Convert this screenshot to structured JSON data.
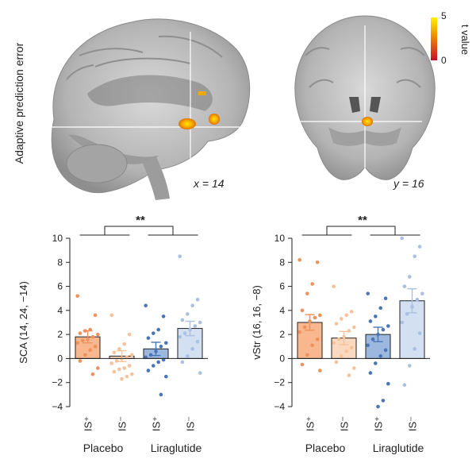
{
  "colors": {
    "placebo_isplus": "#f0905a",
    "placebo_isminus": "#f7c29a",
    "lira_isplus": "#4a76b8",
    "lira_isminus": "#a9c0e2",
    "bar_fill_isplus_placebo": "#f8b78e",
    "bar_fill_isminus_placebo": "#fbd9c0",
    "bar_fill_isplus_lira": "#9db8de",
    "bar_fill_isminus_lira": "#d3e0f1",
    "activation_low": "#c8102e",
    "activation_high": "#fff200"
  },
  "brain_panel": {
    "ylabel": "Adaptive prediction error",
    "sagittal_label": "x = 14",
    "coronal_label": "y = 16",
    "colorbar": {
      "label": "t value",
      "max": "5",
      "min": "0"
    }
  },
  "chart_data": [
    {
      "type": "bar",
      "ylabel": "SCA (14, 24, −14)",
      "ylim": [
        -4,
        10
      ],
      "yticks": [
        "−4",
        "−2",
        "0",
        "2",
        "4",
        "6",
        "8",
        "10"
      ],
      "categories": [
        "IS⁺",
        "IS⁻",
        "IS⁺",
        "IS⁻"
      ],
      "groups": [
        "Placebo",
        "Liraglutide"
      ],
      "significance": "**",
      "values": [
        1.8,
        0.2,
        0.8,
        2.5
      ],
      "sem": [
        0.5,
        0.45,
        0.55,
        0.6
      ],
      "points": [
        [
          5.2,
          3.6,
          2.4,
          2.3,
          2.1,
          2.0,
          1.8,
          1.6,
          1.5,
          1.3,
          1.0,
          0.7,
          0.3,
          -0.2,
          -0.8,
          -1.3
        ],
        [
          3.6,
          2.0,
          1.2,
          0.8,
          0.5,
          0.3,
          0.1,
          0.0,
          -0.2,
          -0.4,
          -0.6,
          -0.8,
          -0.9,
          -1.1,
          -1.3,
          -1.5,
          -1.7
        ],
        [
          4.4,
          3.5,
          2.4,
          2.1,
          1.7,
          1.3,
          1.0,
          0.6,
          0.3,
          0.1,
          -0.1,
          -0.3,
          -0.6,
          -1.0,
          -1.5,
          -3.0
        ],
        [
          8.5,
          4.9,
          4.4,
          3.7,
          3.2,
          3.0,
          2.7,
          2.4,
          2.1,
          1.8,
          1.4,
          0.8,
          0.2,
          -0.3,
          -1.2
        ]
      ]
    },
    {
      "type": "bar",
      "ylabel": "vStr (16, 16, −8)",
      "ylim": [
        -4,
        10
      ],
      "yticks": [
        "−4",
        "−2",
        "0",
        "2",
        "4",
        "6",
        "8",
        "10"
      ],
      "categories": [
        "IS⁺",
        "IS⁻",
        "IS⁺",
        "IS⁻"
      ],
      "groups": [
        "Placebo",
        "Liraglutide"
      ],
      "significance": "**",
      "values": [
        3.0,
        1.7,
        2.0,
        4.8
      ],
      "sem": [
        0.65,
        0.55,
        0.6,
        1.0
      ],
      "points": [
        [
          8.2,
          8.0,
          6.2,
          5.4,
          4.0,
          3.6,
          3.4,
          3.1,
          2.6,
          2.2,
          1.6,
          1.1,
          0.3,
          -0.5,
          -1.0
        ],
        [
          6.0,
          3.9,
          3.6,
          3.3,
          2.9,
          2.6,
          2.3,
          1.8,
          1.6,
          1.3,
          0.9,
          0.6,
          0.2,
          -0.3,
          -0.8,
          -1.4
        ],
        [
          5.4,
          5.0,
          4.2,
          3.5,
          3.1,
          2.7,
          2.4,
          2.0,
          1.6,
          1.1,
          0.7,
          0.2,
          -0.4,
          -1.2,
          -2.1,
          -3.5,
          -4.0
        ],
        [
          10.0,
          9.3,
          8.5,
          6.8,
          6.0,
          5.4,
          4.9,
          4.3,
          3.7,
          3.0,
          2.1,
          0.8,
          -0.6,
          -2.2
        ]
      ]
    }
  ]
}
